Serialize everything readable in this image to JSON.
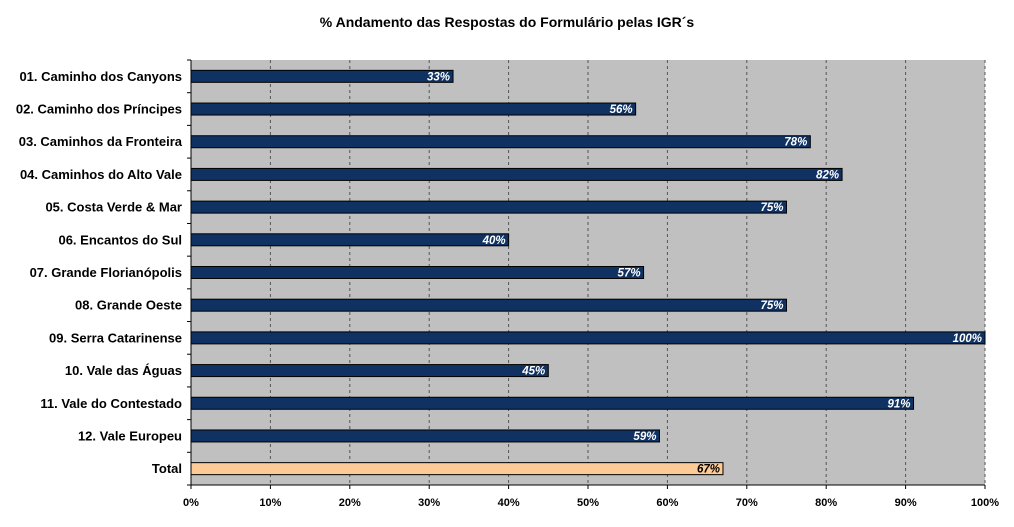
{
  "chart_data": {
    "type": "bar",
    "orientation": "horizontal",
    "title": "% Andamento das Respostas do Formulário pelas IGR´s",
    "xlabel": "",
    "ylabel": "",
    "xlim": [
      0,
      100
    ],
    "grid": true,
    "legend": "none",
    "categories": [
      "01. Caminho dos Canyons",
      "02. Caminho dos Príncipes",
      "03. Caminhos da Fronteira",
      "04. Caminhos do Alto Vale",
      "05. Costa Verde & Mar",
      "06. Encantos do Sul",
      "07. Grande Florianópolis",
      "08. Grande Oeste",
      "09. Serra Catarinense",
      "10. Vale das Águas",
      "11. Vale do Contestado",
      "12. Vale Europeu",
      "Total"
    ],
    "values": [
      33,
      56,
      78,
      82,
      75,
      40,
      57,
      75,
      100,
      45,
      91,
      59,
      67
    ],
    "data_labels": [
      "33%",
      "56%",
      "78%",
      "82%",
      "75%",
      "40%",
      "57%",
      "75%",
      "100%",
      "45%",
      "91%",
      "59%",
      "67%"
    ],
    "tick_labels": [
      "0%",
      "10%",
      "20%",
      "30%",
      "40%",
      "50%",
      "60%",
      "70%",
      "80%",
      "90%",
      "100%"
    ],
    "colors": {
      "bar": "#0f3263",
      "total_bar": "#fccb98",
      "plot_background": "#c0c0c0",
      "gridline": "#555555",
      "label_on_bar": "#ffffff",
      "label_on_total": "#000000"
    }
  }
}
